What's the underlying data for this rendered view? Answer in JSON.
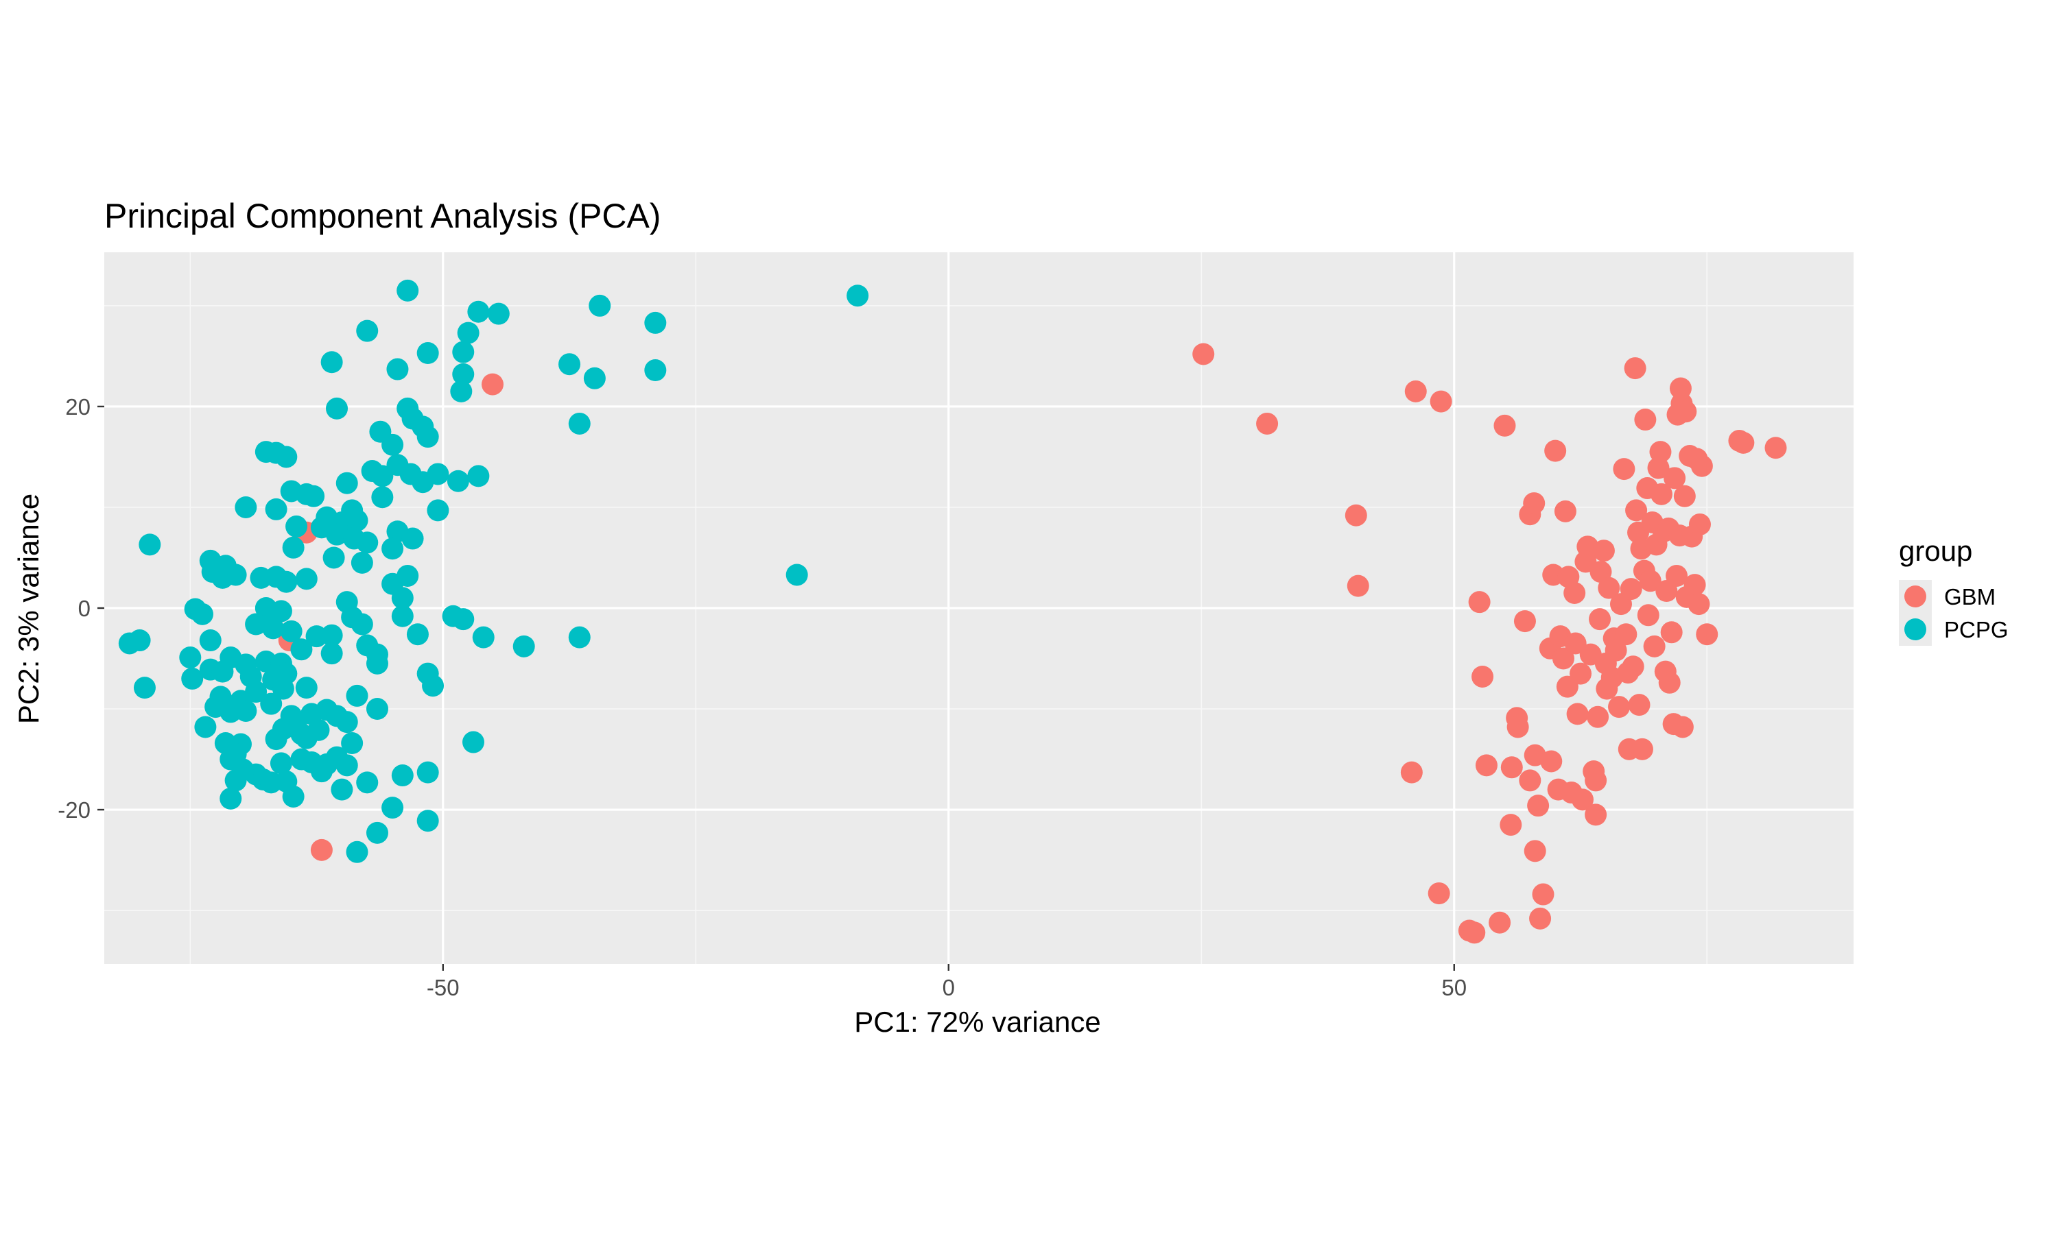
{
  "chart_data": {
    "type": "scatter",
    "title": "Principal Component Analysis (PCA)",
    "xlabel": "PC1: 72% variance",
    "ylabel": "PC2: 3% variance",
    "xlim": [
      -83.5,
      89.5
    ],
    "ylim": [
      -35.3,
      35.3
    ],
    "x_ticks": [
      -50,
      0,
      50
    ],
    "y_ticks": [
      -20,
      0,
      20
    ],
    "grid": true,
    "legend": {
      "title": "group",
      "position": "right"
    },
    "series": [
      {
        "name": "GBM",
        "color": "#F8766D",
        "points": [
          [
            -45.1,
            22.2
          ],
          [
            -63.5,
            7.5
          ],
          [
            -65.2,
            -3.2
          ],
          [
            -62.0,
            -24.0
          ],
          [
            25.2,
            25.2
          ],
          [
            31.5,
            18.3
          ],
          [
            40.3,
            9.2
          ],
          [
            40.5,
            2.2
          ],
          [
            46.2,
            21.5
          ],
          [
            48.7,
            20.5
          ],
          [
            55.0,
            18.1
          ],
          [
            60.0,
            15.6
          ],
          [
            45.8,
            -16.3
          ],
          [
            52.5,
            0.6
          ],
          [
            52.8,
            -6.8
          ],
          [
            53.2,
            -15.6
          ],
          [
            54.5,
            -31.2
          ],
          [
            51.5,
            -32.0
          ],
          [
            52.0,
            -32.2
          ],
          [
            48.5,
            -28.3
          ],
          [
            55.6,
            -21.5
          ],
          [
            55.7,
            -15.8
          ],
          [
            56.2,
            -10.9
          ],
          [
            56.3,
            -11.8
          ],
          [
            57.0,
            -1.3
          ],
          [
            57.5,
            -17.1
          ],
          [
            57.5,
            9.3
          ],
          [
            57.9,
            10.4
          ],
          [
            58.0,
            -14.6
          ],
          [
            58.0,
            -24.1
          ],
          [
            58.3,
            -19.6
          ],
          [
            58.5,
            -30.8
          ],
          [
            58.8,
            -28.4
          ],
          [
            59.5,
            -4.0
          ],
          [
            59.6,
            -15.2
          ],
          [
            59.8,
            3.3
          ],
          [
            60.3,
            -18.0
          ],
          [
            60.5,
            -2.8
          ],
          [
            60.8,
            -5.0
          ],
          [
            61.0,
            9.6
          ],
          [
            61.2,
            -7.8
          ],
          [
            61.3,
            3.1
          ],
          [
            61.6,
            -18.3
          ],
          [
            61.9,
            1.5
          ],
          [
            62.0,
            -3.5
          ],
          [
            62.2,
            -10.5
          ],
          [
            62.5,
            -6.5
          ],
          [
            62.7,
            -19.0
          ],
          [
            63.0,
            4.6
          ],
          [
            63.2,
            6.1
          ],
          [
            63.5,
            -4.6
          ],
          [
            63.8,
            -16.2
          ],
          [
            64.0,
            -20.5
          ],
          [
            64.0,
            -17.1
          ],
          [
            64.2,
            -10.8
          ],
          [
            64.4,
            -1.1
          ],
          [
            64.5,
            3.6
          ],
          [
            64.8,
            5.7
          ],
          [
            65.0,
            -5.5
          ],
          [
            65.1,
            -8.0
          ],
          [
            65.3,
            2.0
          ],
          [
            65.6,
            -6.9
          ],
          [
            65.8,
            -3.0
          ],
          [
            66.0,
            -4.2
          ],
          [
            66.3,
            -9.8
          ],
          [
            66.5,
            0.4
          ],
          [
            66.8,
            13.8
          ],
          [
            67.0,
            -2.6
          ],
          [
            67.2,
            -6.4
          ],
          [
            67.3,
            -14.0
          ],
          [
            67.5,
            1.9
          ],
          [
            67.7,
            -5.8
          ],
          [
            67.9,
            23.8
          ],
          [
            68.0,
            9.7
          ],
          [
            68.2,
            7.5
          ],
          [
            68.3,
            -9.6
          ],
          [
            68.5,
            5.9
          ],
          [
            68.6,
            -14.0
          ],
          [
            68.8,
            3.7
          ],
          [
            68.9,
            18.7
          ],
          [
            69.1,
            11.9
          ],
          [
            69.2,
            -0.7
          ],
          [
            69.4,
            2.7
          ],
          [
            69.6,
            8.5
          ],
          [
            69.8,
            -3.8
          ],
          [
            70.0,
            6.3
          ],
          [
            70.2,
            13.9
          ],
          [
            70.4,
            15.5
          ],
          [
            70.5,
            11.3
          ],
          [
            70.7,
            7.6
          ],
          [
            70.9,
            -6.3
          ],
          [
            71.0,
            1.7
          ],
          [
            71.2,
            7.9
          ],
          [
            71.3,
            -7.4
          ],
          [
            71.5,
            -2.4
          ],
          [
            71.7,
            -11.5
          ],
          [
            71.8,
            12.9
          ],
          [
            72.0,
            3.2
          ],
          [
            72.1,
            19.2
          ],
          [
            72.3,
            7.2
          ],
          [
            72.4,
            21.8
          ],
          [
            72.5,
            20.3
          ],
          [
            72.6,
            -11.8
          ],
          [
            72.8,
            11.1
          ],
          [
            72.9,
            19.5
          ],
          [
            73.0,
            1.1
          ],
          [
            73.3,
            15.1
          ],
          [
            73.5,
            7.1
          ],
          [
            73.8,
            2.3
          ],
          [
            74.0,
            14.8
          ],
          [
            74.2,
            0.4
          ],
          [
            74.3,
            8.3
          ],
          [
            74.5,
            14.1
          ],
          [
            75.0,
            -2.6
          ],
          [
            78.2,
            16.6
          ],
          [
            78.6,
            16.4
          ],
          [
            81.8,
            15.9
          ]
        ]
      },
      {
        "name": "PCPG",
        "color": "#00BFC4",
        "points": [
          [
            -53.5,
            31.5
          ],
          [
            -9.0,
            31.0
          ],
          [
            -46.5,
            29.4
          ],
          [
            -44.5,
            29.2
          ],
          [
            -57.5,
            27.5
          ],
          [
            -34.5,
            30.0
          ],
          [
            -29.0,
            28.3
          ],
          [
            -47.5,
            27.3
          ],
          [
            -48.0,
            25.4
          ],
          [
            -51.5,
            25.3
          ],
          [
            -61.0,
            24.4
          ],
          [
            -54.5,
            23.7
          ],
          [
            -37.5,
            24.2
          ],
          [
            -29.0,
            23.6
          ],
          [
            -35.0,
            22.8
          ],
          [
            -48.0,
            23.2
          ],
          [
            -48.2,
            21.5
          ],
          [
            -60.5,
            19.8
          ],
          [
            -53.5,
            19.8
          ],
          [
            -53.0,
            18.8
          ],
          [
            -52.0,
            18.0
          ],
          [
            -36.5,
            18.3
          ],
          [
            -56.2,
            17.5
          ],
          [
            -51.5,
            17.0
          ],
          [
            -55.0,
            16.2
          ],
          [
            -67.5,
            15.5
          ],
          [
            -66.5,
            15.4
          ],
          [
            -65.5,
            15.0
          ],
          [
            -54.5,
            14.2
          ],
          [
            -57.0,
            13.6
          ],
          [
            -56.0,
            13.1
          ],
          [
            -53.2,
            13.3
          ],
          [
            -50.5,
            13.3
          ],
          [
            -48.5,
            12.6
          ],
          [
            -46.5,
            13.1
          ],
          [
            -59.5,
            12.4
          ],
          [
            -52.0,
            12.5
          ],
          [
            -65.0,
            11.6
          ],
          [
            -63.5,
            11.3
          ],
          [
            -62.8,
            11.1
          ],
          [
            -56.0,
            11.0
          ],
          [
            -69.5,
            10.0
          ],
          [
            -66.5,
            9.8
          ],
          [
            -59.0,
            9.7
          ],
          [
            -50.5,
            9.7
          ],
          [
            -61.5,
            9.0
          ],
          [
            -60.0,
            8.5
          ],
          [
            -58.5,
            8.7
          ],
          [
            -64.5,
            8.1
          ],
          [
            -62.0,
            8.0
          ],
          [
            -54.5,
            7.6
          ],
          [
            -60.5,
            7.3
          ],
          [
            -58.8,
            6.9
          ],
          [
            -53.0,
            6.9
          ],
          [
            -57.5,
            6.5
          ],
          [
            -64.8,
            6.0
          ],
          [
            -55.0,
            5.9
          ],
          [
            -60.8,
            5.0
          ],
          [
            -58.0,
            4.5
          ],
          [
            -79.0,
            6.3
          ],
          [
            -73.0,
            4.7
          ],
          [
            -72.5,
            4.2
          ],
          [
            -71.5,
            4.2
          ],
          [
            -72.8,
            3.6
          ],
          [
            -71.8,
            3.0
          ],
          [
            -70.5,
            3.3
          ],
          [
            -68.0,
            3.0
          ],
          [
            -66.5,
            3.1
          ],
          [
            -65.5,
            2.6
          ],
          [
            -63.5,
            2.9
          ],
          [
            -55.0,
            2.4
          ],
          [
            -53.5,
            3.2
          ],
          [
            -54.0,
            1.0
          ],
          [
            -59.5,
            0.6
          ],
          [
            -74.5,
            -0.1
          ],
          [
            -73.8,
            -0.6
          ],
          [
            -67.5,
            0.0
          ],
          [
            -67.0,
            -0.5
          ],
          [
            -66.0,
            -0.3
          ],
          [
            -59.0,
            -0.9
          ],
          [
            -58.0,
            -1.6
          ],
          [
            -54.0,
            -0.8
          ],
          [
            -49.0,
            -0.8
          ],
          [
            -48.0,
            -1.1
          ],
          [
            -68.5,
            -1.6
          ],
          [
            -66.8,
            -2.0
          ],
          [
            -65.0,
            -2.3
          ],
          [
            -62.5,
            -2.8
          ],
          [
            -61.0,
            -2.7
          ],
          [
            -57.5,
            -3.7
          ],
          [
            -52.5,
            -2.6
          ],
          [
            -46.0,
            -2.9
          ],
          [
            -42.0,
            -3.8
          ],
          [
            -36.5,
            -2.9
          ],
          [
            -81.0,
            -3.5
          ],
          [
            -80.0,
            -3.2
          ],
          [
            -73.0,
            -3.2
          ],
          [
            -75.0,
            -4.9
          ],
          [
            -71.0,
            -4.9
          ],
          [
            -69.5,
            -5.6
          ],
          [
            -67.5,
            -5.3
          ],
          [
            -66.0,
            -5.5
          ],
          [
            -64.0,
            -4.1
          ],
          [
            -61.0,
            -4.5
          ],
          [
            -56.5,
            -4.6
          ],
          [
            -73.0,
            -6.1
          ],
          [
            -71.8,
            -6.3
          ],
          [
            -69.0,
            -6.8
          ],
          [
            -66.8,
            -7.1
          ],
          [
            -65.5,
            -6.5
          ],
          [
            -63.5,
            -7.9
          ],
          [
            -56.5,
            -5.5
          ],
          [
            -51.5,
            -6.5
          ],
          [
            -51.0,
            -7.7
          ],
          [
            -79.5,
            -7.9
          ],
          [
            -74.8,
            -7.0
          ],
          [
            -72.0,
            -8.8
          ],
          [
            -70.0,
            -9.2
          ],
          [
            -68.5,
            -8.3
          ],
          [
            -67.0,
            -9.5
          ],
          [
            -65.8,
            -8.0
          ],
          [
            -58.5,
            -8.7
          ],
          [
            -72.5,
            -9.8
          ],
          [
            -71.0,
            -10.3
          ],
          [
            -69.5,
            -10.2
          ],
          [
            -65.0,
            -10.7
          ],
          [
            -63.0,
            -10.5
          ],
          [
            -61.5,
            -10.1
          ],
          [
            -60.5,
            -10.7
          ],
          [
            -59.5,
            -11.3
          ],
          [
            -56.5,
            -10.0
          ],
          [
            -73.5,
            -11.8
          ],
          [
            -65.8,
            -12.0
          ],
          [
            -64.5,
            -11.8
          ],
          [
            -63.5,
            -12.9
          ],
          [
            -62.3,
            -12.1
          ],
          [
            -66.5,
            -13.0
          ],
          [
            -64.0,
            -12.5
          ],
          [
            -71.5,
            -13.4
          ],
          [
            -70.0,
            -13.5
          ],
          [
            -59.0,
            -13.4
          ],
          [
            -47.0,
            -13.3
          ],
          [
            -71.0,
            -15.0
          ],
          [
            -70.5,
            -14.5
          ],
          [
            -66.0,
            -15.4
          ],
          [
            -64.0,
            -15.0
          ],
          [
            -63.0,
            -15.3
          ],
          [
            -61.5,
            -15.5
          ],
          [
            -60.5,
            -14.8
          ],
          [
            -59.5,
            -15.6
          ],
          [
            -68.5,
            -16.5
          ],
          [
            -67.8,
            -17.0
          ],
          [
            -69.8,
            -16.0
          ],
          [
            -70.5,
            -17.1
          ],
          [
            -67.0,
            -17.3
          ],
          [
            -65.5,
            -17.2
          ],
          [
            -62.0,
            -16.2
          ],
          [
            -57.5,
            -17.3
          ],
          [
            -54.0,
            -16.6
          ],
          [
            -51.5,
            -16.3
          ],
          [
            -71.0,
            -18.9
          ],
          [
            -64.8,
            -18.7
          ],
          [
            -60.0,
            -18.0
          ],
          [
            -55.0,
            -19.8
          ],
          [
            -51.5,
            -21.1
          ],
          [
            -56.5,
            -22.3
          ],
          [
            -58.5,
            -24.2
          ],
          [
            -15.0,
            3.3
          ]
        ]
      }
    ]
  }
}
